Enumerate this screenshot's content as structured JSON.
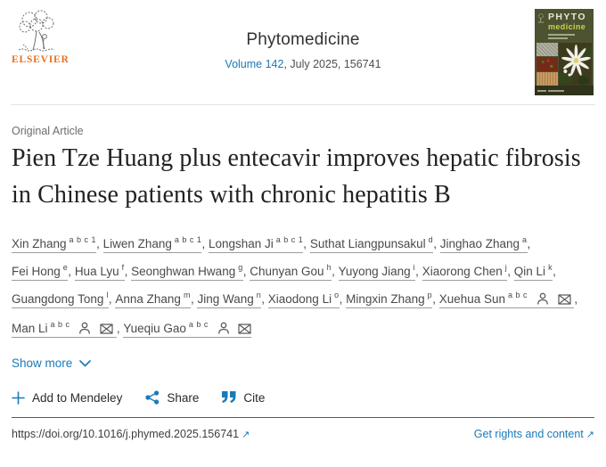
{
  "banner": {
    "publisher_wordmark": "ELSEVIER",
    "journal_title": "Phytomedicine",
    "volume_link_label": "Volume 142",
    "issue_suffix": ", July 2025, 156741",
    "cover": {
      "title_top": "PHYTO",
      "title_bottom": "medicine"
    }
  },
  "article": {
    "category_label": "Original Article",
    "title": "Pien Tze Huang plus entecavir improves hepatic fibrosis in Chinese patients with chronic hepatitis B",
    "authors": [
      {
        "name": "Xin Zhang",
        "sup": "a b c 1",
        "corresponding": false
      },
      {
        "name": "Liwen Zhang",
        "sup": "a b c 1",
        "corresponding": false
      },
      {
        "name": "Longshan Ji",
        "sup": "a b c 1",
        "corresponding": false
      },
      {
        "name": "Suthat Liangpunsakul",
        "sup": "d",
        "corresponding": false
      },
      {
        "name": "Jinghao Zhang",
        "sup": "a",
        "corresponding": false
      },
      {
        "name": "Fei Hong",
        "sup": "e",
        "corresponding": false
      },
      {
        "name": "Hua Lyu",
        "sup": "f",
        "corresponding": false
      },
      {
        "name": "Seonghwan Hwang",
        "sup": "g",
        "corresponding": false
      },
      {
        "name": "Chunyan Gou",
        "sup": "h",
        "corresponding": false
      },
      {
        "name": "Yuyong Jiang",
        "sup": "i",
        "corresponding": false
      },
      {
        "name": "Xiaorong Chen",
        "sup": "j",
        "corresponding": false
      },
      {
        "name": "Qin Li",
        "sup": "k",
        "corresponding": false
      },
      {
        "name": "Guangdong Tong",
        "sup": "l",
        "corresponding": false
      },
      {
        "name": "Anna Zhang",
        "sup": "m",
        "corresponding": false
      },
      {
        "name": "Jing Wang",
        "sup": "n",
        "corresponding": false
      },
      {
        "name": "Xiaodong Li",
        "sup": "o",
        "corresponding": false
      },
      {
        "name": "Mingxin Zhang",
        "sup": "p",
        "corresponding": false
      },
      {
        "name": "Xuehua Sun",
        "sup": "a b c",
        "corresponding": true
      },
      {
        "name": "Man Li",
        "sup": "a b c",
        "corresponding": true
      },
      {
        "name": "Yueqiu Gao",
        "sup": "a b c",
        "corresponding": true
      }
    ],
    "show_more_label": "Show more"
  },
  "actions": {
    "mendeley_label": "Add to Mendeley",
    "share_label": "Share",
    "cite_label": "Cite"
  },
  "footer": {
    "doi_text": "https://doi.org/10.1016/j.phymed.2025.156741",
    "rights_label": "Get rights and content"
  },
  "icons": {
    "external_link": "↗"
  },
  "colors": {
    "link_blue": "#1a7ab8",
    "elsevier_orange": "#e9711c",
    "cover_green": "#4d5230"
  }
}
